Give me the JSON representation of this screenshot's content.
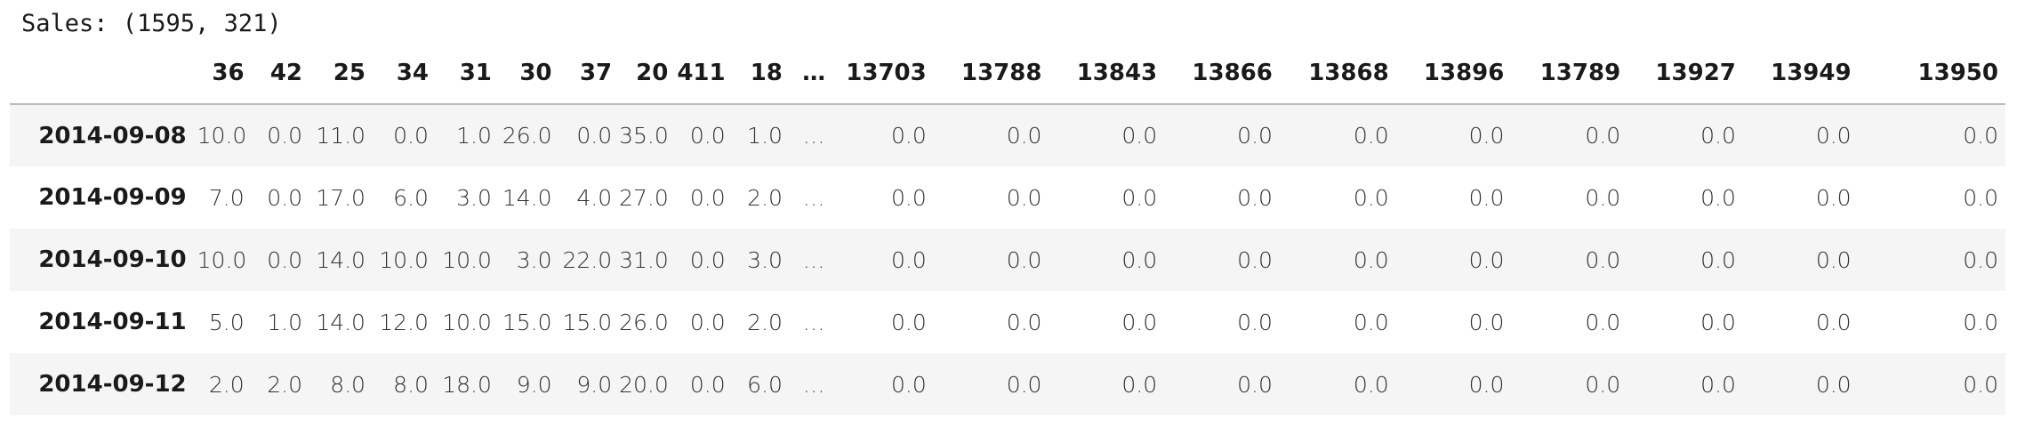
{
  "output_text": "Sales: (1595, 321)",
  "table": {
    "columns": [
      "36",
      "42",
      "25",
      "34",
      "31",
      "30",
      "37",
      "20",
      "411",
      "18",
      "…",
      "13703",
      "13788",
      "13843",
      "13866",
      "13868",
      "13896",
      "13789",
      "13927",
      "13949",
      "13950"
    ],
    "rows": [
      {
        "index": "2014-09-08",
        "values": [
          "10.0",
          "0.0",
          "11.0",
          "0.0",
          "1.0",
          "26.0",
          "0.0",
          "35.0",
          "0.0",
          "1.0",
          "…",
          "0.0",
          "0.0",
          "0.0",
          "0.0",
          "0.0",
          "0.0",
          "0.0",
          "0.0",
          "0.0",
          "0.0"
        ]
      },
      {
        "index": "2014-09-09",
        "values": [
          "7.0",
          "0.0",
          "17.0",
          "6.0",
          "3.0",
          "14.0",
          "4.0",
          "27.0",
          "0.0",
          "2.0",
          "…",
          "0.0",
          "0.0",
          "0.0",
          "0.0",
          "0.0",
          "0.0",
          "0.0",
          "0.0",
          "0.0",
          "0.0"
        ]
      },
      {
        "index": "2014-09-10",
        "values": [
          "10.0",
          "0.0",
          "14.0",
          "10.0",
          "10.0",
          "3.0",
          "22.0",
          "31.0",
          "0.0",
          "3.0",
          "…",
          "0.0",
          "0.0",
          "0.0",
          "0.0",
          "0.0",
          "0.0",
          "0.0",
          "0.0",
          "0.0",
          "0.0"
        ]
      },
      {
        "index": "2014-09-11",
        "values": [
          "5.0",
          "1.0",
          "14.0",
          "12.0",
          "10.0",
          "15.0",
          "15.0",
          "26.0",
          "0.0",
          "2.0",
          "…",
          "0.0",
          "0.0",
          "0.0",
          "0.0",
          "0.0",
          "0.0",
          "0.0",
          "0.0",
          "0.0",
          "0.0"
        ]
      },
      {
        "index": "2014-09-12",
        "values": [
          "2.0",
          "2.0",
          "8.0",
          "8.0",
          "18.0",
          "9.0",
          "9.0",
          "20.0",
          "0.0",
          "6.0",
          "…",
          "0.0",
          "0.0",
          "0.0",
          "0.0",
          "0.0",
          "0.0",
          "0.0",
          "0.0",
          "0.0",
          "0.0"
        ]
      }
    ]
  }
}
